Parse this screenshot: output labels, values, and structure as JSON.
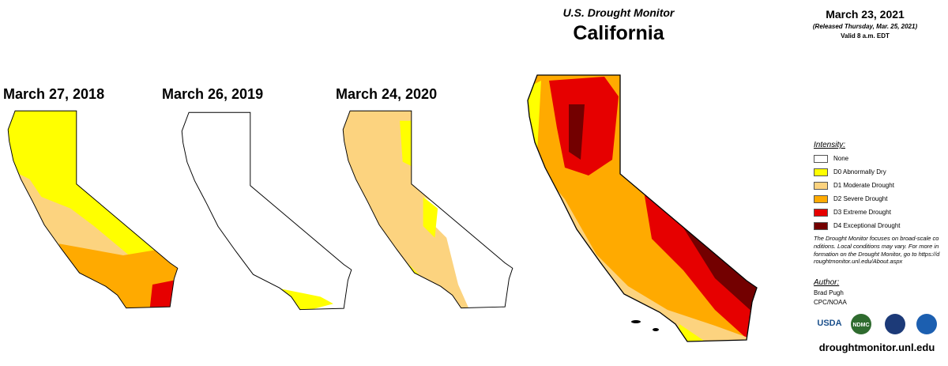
{
  "header": {
    "title": "U.S. Drought Monitor",
    "region": "California",
    "date": "March 23, 2021",
    "released": "(Released Thursday, Mar. 25, 2021)",
    "valid": "Valid 8 a.m. EDT"
  },
  "maps": [
    {
      "label": "March 27, 2018"
    },
    {
      "label": "March 26, 2019"
    },
    {
      "label": "March 24, 2020"
    }
  ],
  "legend": {
    "title": "Intensity:",
    "items": [
      {
        "label": "None",
        "color": "#ffffff"
      },
      {
        "label": "D0 Abnormally Dry",
        "color": "#ffff00"
      },
      {
        "label": "D1 Moderate Drought",
        "color": "#fcd37f"
      },
      {
        "label": "D2 Severe Drought",
        "color": "#ffaa00"
      },
      {
        "label": "D3 Extreme Drought",
        "color": "#e60000"
      },
      {
        "label": "D4 Exceptional Drought",
        "color": "#730000"
      }
    ]
  },
  "note": "The Drought Monitor focuses on broad-scale conditions. Local conditions may vary. For more information on the Drought Monitor, go to https://droughtmonitor.unl.edu/About.aspx",
  "author": {
    "title": "Author:",
    "name": "Brad Pugh",
    "org": "CPC/NOAA"
  },
  "logos": [
    "USDA",
    "NDMC"
  ],
  "footer": "droughtmonitor.unl.edu"
}
